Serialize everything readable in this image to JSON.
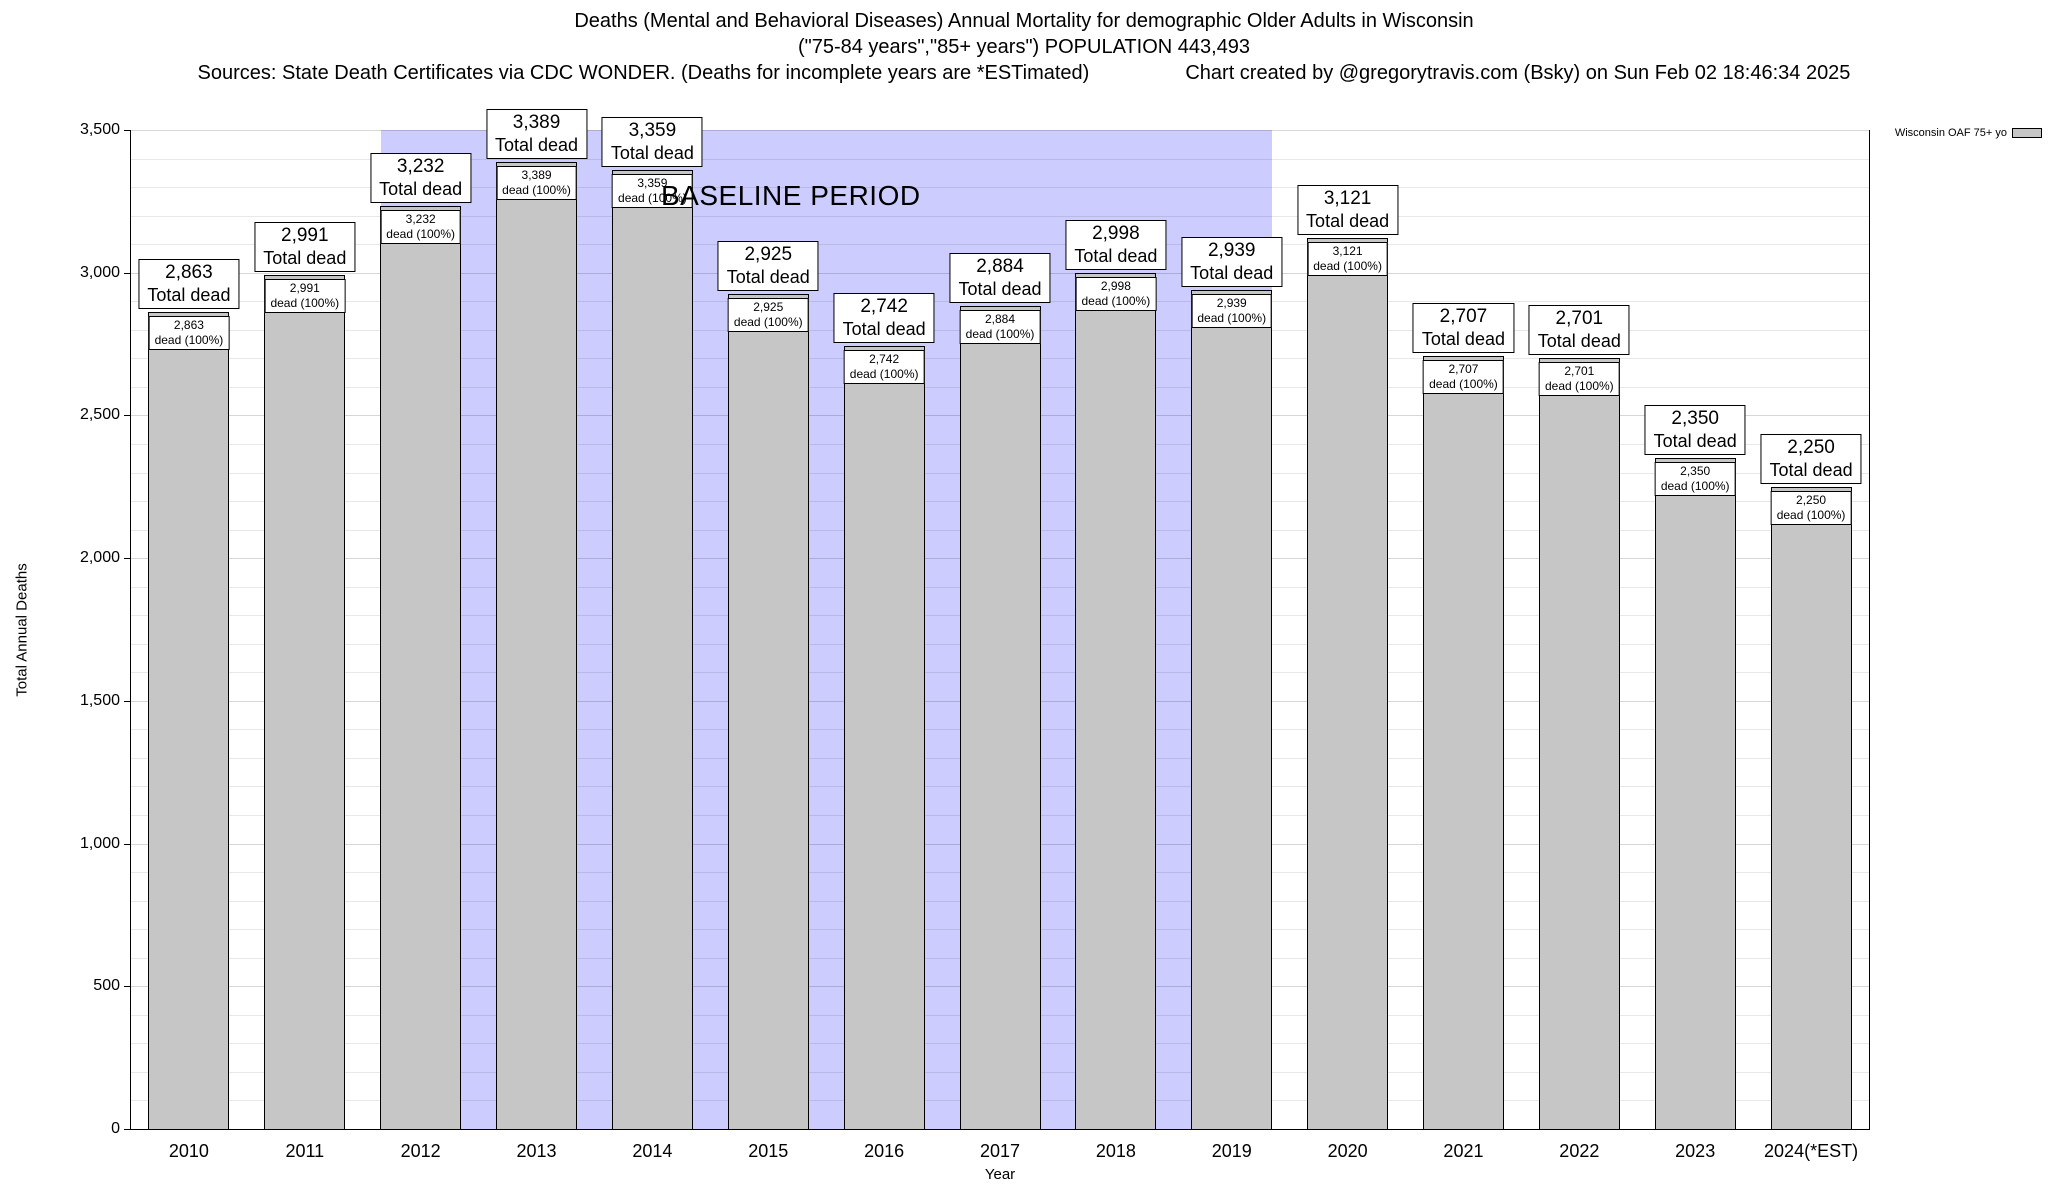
{
  "header": {
    "title_line1": "Deaths (Mental and Behavioral Diseases) Annual Mortality for demographic Older Adults in Wisconsin",
    "title_line2": "(\"75-84 years\",\"85+ years\") POPULATION 443,493",
    "sources": "Sources: State Death Certificates via CDC WONDER. (Deaths for incomplete years are *ESTimated)",
    "credit": "Chart created by @gregorytravis.com (Bsky) on Sun Feb 02 18:46:34 2025"
  },
  "legend": {
    "label": "Wisconsin OAF 75+ yo",
    "swatch_color": "#c6c6c6"
  },
  "chart_data": {
    "type": "bar",
    "title": "Deaths (Mental and Behavioral Diseases) Annual Mortality for demographic Older Adults in Wisconsin",
    "subtitle": "(\"75-84 years\",\"85+ years\") POPULATION 443,493",
    "xlabel": "Year",
    "ylabel": "Total Annual Deaths",
    "ylim": [
      0,
      3500
    ],
    "y_major_ticks": [
      0,
      500,
      1000,
      1500,
      2000,
      2500,
      3000,
      3500
    ],
    "y_minor_step": 100,
    "grid": true,
    "legend_position": "top-right",
    "categories": [
      "2010",
      "2011",
      "2012",
      "2013",
      "2014",
      "2015",
      "2016",
      "2017",
      "2018",
      "2019",
      "2020",
      "2021",
      "2022",
      "2023",
      "2024(*EST)"
    ],
    "values": [
      2863,
      2991,
      3232,
      3389,
      3359,
      2925,
      2742,
      2884,
      2998,
      2939,
      3121,
      2707,
      2701,
      2350,
      2250
    ],
    "labels": [
      "2,863",
      "2,991",
      "3,232",
      "3,389",
      "3,359",
      "2,925",
      "2,742",
      "2,884",
      "2,998",
      "2,939",
      "3,121",
      "2,707",
      "2,701",
      "2,350",
      "2,250"
    ],
    "bar_color": "#c6c6c6",
    "bar_total_suffix": "Total dead",
    "bar_inner_suffix": "dead (100%)",
    "baseline_band": {
      "label": "BASELINE PERIOD",
      "start_category": "2012",
      "end_category": "2019",
      "start_index": 2,
      "end_index": 9,
      "color": "#ccccff"
    }
  }
}
